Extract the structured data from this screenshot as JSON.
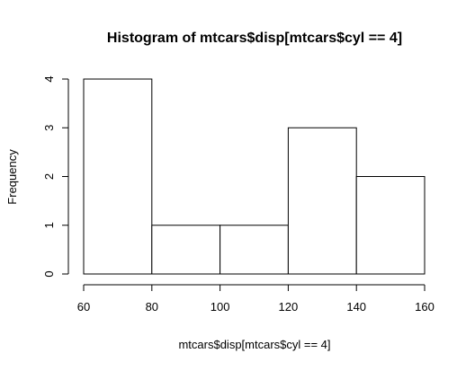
{
  "chart_data": {
    "type": "bar",
    "title": "Histogram of mtcars$disp[mtcars$cyl == 4]",
    "xlabel": "mtcars$disp[mtcars$cyl == 4]",
    "ylabel": "Frequency",
    "bins": [
      {
        "from": 60,
        "to": 80,
        "count": 4
      },
      {
        "from": 80,
        "to": 100,
        "count": 1
      },
      {
        "from": 100,
        "to": 120,
        "count": 1
      },
      {
        "from": 120,
        "to": 140,
        "count": 3
      },
      {
        "from": 140,
        "to": 160,
        "count": 2
      }
    ],
    "xlim": [
      60,
      160
    ],
    "ylim": [
      0,
      4
    ],
    "xticks": [
      60,
      80,
      100,
      120,
      140,
      160
    ],
    "yticks": [
      0,
      1,
      2,
      3,
      4
    ],
    "grid": false,
    "bar_fill": "#ffffff",
    "bar_stroke": "#000000"
  }
}
